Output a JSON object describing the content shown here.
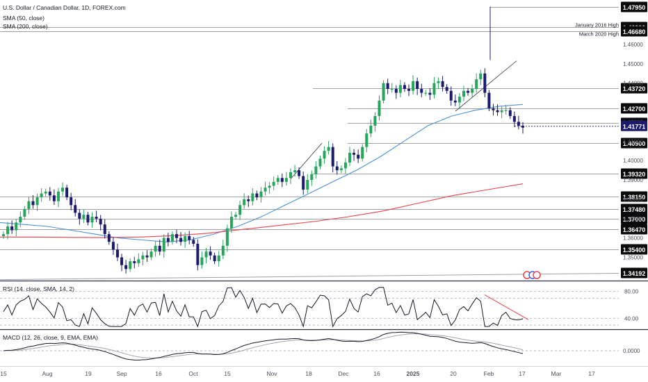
{
  "header": {
    "title": "U.S. Dollar / Canadian Dollar, 1D, FOREX.com",
    "sma50_label": "SMA (50, close)",
    "sma200_label": "SMA (200, close)",
    "rsi_label": "RSI (14, close, SMA, 14, 2)",
    "macd_label": "MACD (12, 26, close, 9, EMA, EMA)"
  },
  "colors": {
    "up": "#26a65b",
    "down": "#1a1a6e",
    "sma50": "#4a90d9",
    "sma200": "#e8414d",
    "level_line": "#808080",
    "current_badge": "#1a1a6e",
    "badge": "#0b0b0b"
  },
  "chart_data": {
    "type": "candlestick",
    "title": "U.S. Dollar / Canadian Dollar, 1D, FOREX.com",
    "price_axis": {
      "ylim": [
        1.338,
        1.4815
      ],
      "tick_labels": [
        "1.46000",
        "1.45000",
        "1.44000",
        "1.42000",
        "1.41000",
        "1.40000",
        "1.39000",
        "1.38000",
        "1.37000",
        "1.36000",
        "1.35000"
      ]
    },
    "x_axis_labels": [
      "15",
      "Aug",
      "19",
      "Sep",
      "16",
      "Oct",
      "15",
      "Nov",
      "18",
      "Dec",
      "16",
      "2025",
      "20",
      "Feb",
      "17",
      "Mar",
      "17"
    ],
    "levels": [
      {
        "value": 1.4795,
        "label": "1.47950"
      },
      {
        "value": 1.469,
        "label": "1.46900",
        "annotation": "January 2016 High"
      },
      {
        "value": 1.4668,
        "label": "1.46680",
        "annotation": "March 2020 High"
      },
      {
        "value": 1.4372,
        "label": "1.43720"
      },
      {
        "value": 1.427,
        "label": "1.42700"
      },
      {
        "value": 1.4195,
        "label": "1.41950"
      },
      {
        "value": 1.409,
        "label": "1.40900"
      },
      {
        "value": 1.3932,
        "label": "1.39320"
      },
      {
        "value": 1.3815,
        "label": "1.38150"
      },
      {
        "value": 1.3748,
        "label": "1.37480"
      },
      {
        "value": 1.37,
        "label": "1.37000"
      },
      {
        "value": 1.3647,
        "label": "1.36470"
      },
      {
        "value": 1.354,
        "label": "1.35400"
      },
      {
        "value": 1.3419,
        "label": "1.34192"
      }
    ],
    "current_price": {
      "value": 1.41771,
      "label": "1.41771"
    },
    "candle_closes": [
      1.362,
      1.366,
      1.364,
      1.368,
      1.371,
      1.375,
      1.379,
      1.377,
      1.381,
      1.383,
      1.384,
      1.382,
      1.379,
      1.384,
      1.386,
      1.381,
      1.377,
      1.373,
      1.37,
      1.372,
      1.368,
      1.371,
      1.37,
      1.367,
      1.362,
      1.358,
      1.354,
      1.35,
      1.346,
      1.344,
      1.348,
      1.347,
      1.349,
      1.351,
      1.35,
      1.353,
      1.356,
      1.353,
      1.36,
      1.358,
      1.362,
      1.36,
      1.358,
      1.361,
      1.359,
      1.357,
      1.346,
      1.35,
      1.353,
      1.351,
      1.348,
      1.351,
      1.356,
      1.365,
      1.371,
      1.372,
      1.377,
      1.38,
      1.379,
      1.383,
      1.381,
      1.384,
      1.386,
      1.387,
      1.389,
      1.391,
      1.389,
      1.391,
      1.394,
      1.395,
      1.392,
      1.385,
      1.39,
      1.393,
      1.397,
      1.401,
      1.405,
      1.407,
      1.397,
      1.395,
      1.396,
      1.399,
      1.404,
      1.403,
      1.401,
      1.407,
      1.414,
      1.418,
      1.423,
      1.431,
      1.44,
      1.437,
      1.437,
      1.435,
      1.439,
      1.437,
      1.436,
      1.441,
      1.437,
      1.435,
      1.435,
      1.434,
      1.44,
      1.441,
      1.438,
      1.436,
      1.431,
      1.43,
      1.433,
      1.436,
      1.435,
      1.437,
      1.442,
      1.445,
      1.435,
      1.427,
      1.426,
      1.425,
      1.426,
      1.426,
      1.423,
      1.42,
      1.418,
      1.417
    ],
    "sma50": [
      1.368,
      1.367,
      1.366,
      1.364,
      1.362,
      1.36,
      1.359,
      1.358,
      1.359,
      1.362,
      1.366,
      1.371,
      1.377,
      1.383,
      1.389,
      1.395,
      1.402,
      1.41,
      1.418,
      1.423,
      1.426,
      1.428,
      1.429
    ],
    "sma200": [
      1.3605,
      1.3605,
      1.3603,
      1.3602,
      1.3605,
      1.3612,
      1.3625,
      1.3645,
      1.3665,
      1.3685,
      1.371,
      1.374,
      1.378,
      1.382,
      1.385,
      1.388
    ],
    "rsi": {
      "tick_labels": [
        "80.00",
        "40.00"
      ],
      "last_label": "37"
    },
    "macd": {
      "tick_labels": [
        "0.0000"
      ]
    }
  }
}
